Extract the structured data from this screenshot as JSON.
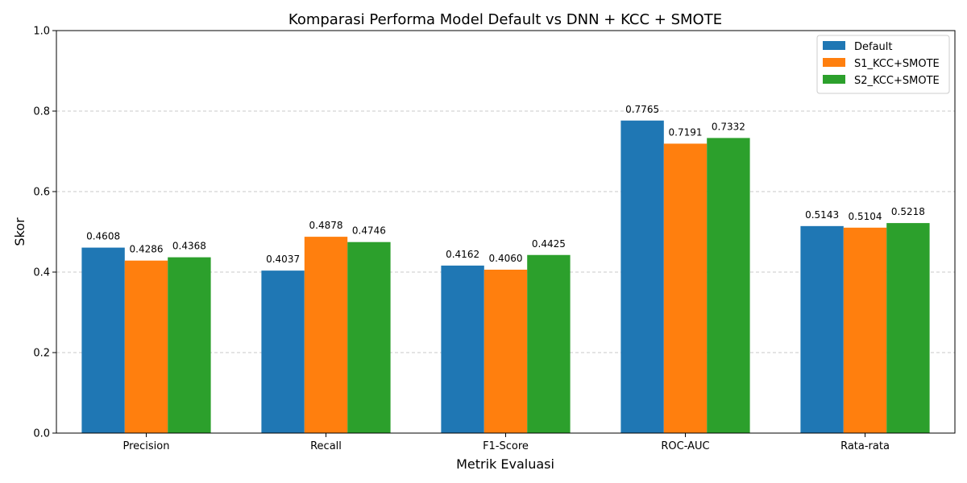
{
  "chart_data": {
    "type": "bar",
    "title": "Komparasi Performa Model Default vs DNN + KCC + SMOTE",
    "xlabel": "Metrik Evaluasi",
    "ylabel": "Skor",
    "ylim": [
      0,
      1
    ],
    "yticks": [
      "0.0",
      "0.2",
      "0.4",
      "0.6",
      "0.8",
      "1.0"
    ],
    "grid": "y-dashed",
    "legend_position": "top-right",
    "categories": [
      "Precision",
      "Recall",
      "F1-Score",
      "ROC-AUC",
      "Rata-rata"
    ],
    "series": [
      {
        "name": "Default",
        "color": "#1f77b4",
        "values": [
          0.4608,
          0.4037,
          0.4162,
          0.7765,
          0.5143
        ],
        "labels": [
          "0.4608",
          "0.4037",
          "0.4162",
          "0.7765",
          "0.5143"
        ]
      },
      {
        "name": "S1_KCC+SMOTE",
        "color": "#ff7f0e",
        "values": [
          0.4286,
          0.4878,
          0.406,
          0.7191,
          0.5104
        ],
        "labels": [
          "0.4286",
          "0.4878",
          "0.4060",
          "0.7191",
          "0.5104"
        ]
      },
      {
        "name": "S2_KCC+SMOTE",
        "color": "#2ca02c",
        "values": [
          0.4368,
          0.4746,
          0.4425,
          0.7332,
          0.5218
        ],
        "labels": [
          "0.4368",
          "0.4746",
          "0.4425",
          "0.7332",
          "0.5218"
        ]
      }
    ]
  }
}
